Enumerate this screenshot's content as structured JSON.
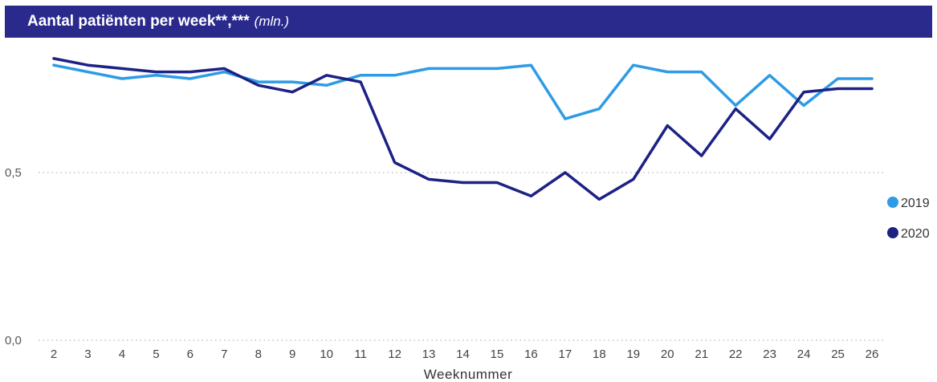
{
  "chart_data": {
    "type": "line",
    "title": "Aantal patiënten per week**,***",
    "title_unit": "(mln.)",
    "xlabel": "Weeknummer",
    "ylabel": "",
    "x": [
      2,
      3,
      4,
      5,
      6,
      7,
      8,
      9,
      10,
      11,
      12,
      13,
      14,
      15,
      16,
      17,
      18,
      19,
      20,
      21,
      22,
      23,
      24,
      25,
      26
    ],
    "ylim": [
      0,
      0.8
    ],
    "yticks": [
      {
        "value": 0.5,
        "label": "0,5"
      },
      {
        "value": 0.0,
        "label": "0,0"
      }
    ],
    "grid": "dotted horizontal at y ticks",
    "legend_position": "right",
    "series": [
      {
        "name": "2019",
        "color": "#2e9be6",
        "values": [
          0.82,
          0.8,
          0.78,
          0.79,
          0.78,
          0.8,
          0.77,
          0.77,
          0.76,
          0.79,
          0.79,
          0.81,
          0.81,
          0.81,
          0.82,
          0.66,
          0.69,
          0.82,
          0.8,
          0.8,
          0.7,
          0.79,
          0.7,
          0.78,
          0.78
        ]
      },
      {
        "name": "2020",
        "color": "#1c2184",
        "values": [
          0.84,
          0.82,
          0.81,
          0.8,
          0.8,
          0.81,
          0.76,
          0.74,
          0.79,
          0.77,
          0.53,
          0.48,
          0.47,
          0.47,
          0.43,
          0.5,
          0.42,
          0.48,
          0.64,
          0.55,
          0.69,
          0.6,
          0.74,
          0.75,
          0.75
        ]
      }
    ]
  }
}
